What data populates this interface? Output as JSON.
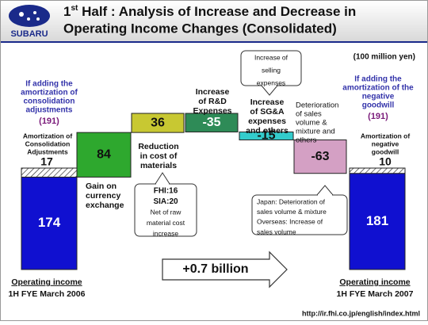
{
  "logo": "SUBARU",
  "title": {
    "ordinal": "1",
    "suffix": "st",
    "line1": " Half : Analysis of Increase and Decrease in",
    "line2": "Operating Income Changes (Consolidated)"
  },
  "url": "http://ir.fhi.co.jp/english/index.html",
  "chart_data": {
    "type": "waterfall",
    "unit": "(100 million yen)",
    "ylim": [
      0,
      300
    ],
    "arrow_label": "+0.7 billion",
    "bars": [
      {
        "kind": "total",
        "value": 174,
        "color": "#1010d0",
        "label_color": "#ffffff",
        "label": [
          "Operating income",
          "1H FYE March 2006"
        ],
        "extra": {
          "value": 17,
          "label": [
            "Amortization of",
            "Consolidation",
            "Adjustments"
          ]
        },
        "note": [
          "If adding the",
          "amortization of",
          "consolidation",
          "adjustments"
        ],
        "note_total": "(191)"
      },
      {
        "kind": "delta",
        "value": 84,
        "color": "#2ea82e",
        "label_color": "#111111",
        "label": [
          "Gain on",
          "currency",
          "exchange"
        ]
      },
      {
        "kind": "delta",
        "value": 36,
        "color": "#c8c832",
        "label_color": "#111111",
        "label": [
          "Reduction",
          "in cost of",
          "materials"
        ],
        "callout": [
          "FHI:16",
          "SIA:20",
          "Net of raw",
          "material cost",
          "increase"
        ]
      },
      {
        "kind": "delta",
        "value": -35,
        "color": "#2e8b57",
        "label_color": "#ffffff",
        "label": [
          "Increase",
          "of R&D",
          "Expenses"
        ]
      },
      {
        "kind": "delta",
        "value": -15,
        "color": "#33cccc",
        "label_color": "#111111",
        "label": [
          "Increase",
          "of SG&A",
          "expenses",
          "and others"
        ],
        "callout": [
          "Increase of",
          "selling",
          "expenses"
        ]
      },
      {
        "kind": "delta",
        "value": -63,
        "color": "#d4a0c4",
        "label_color": "#111111",
        "label": [
          "Deterioration",
          "of sales",
          "volume &",
          "mixture and",
          "others"
        ],
        "callout": [
          "Japan: Deterioration of",
          "sales volume & mixture",
          "Overseas: Increase of",
          "sales volume"
        ]
      },
      {
        "kind": "total",
        "value": 181,
        "color": "#1010d0",
        "label_color": "#ffffff",
        "label": [
          "Operating income",
          "1H FYE March 2007"
        ],
        "extra": {
          "value": 10,
          "label": [
            "Amortization of",
            "negative",
            "goodwill"
          ]
        },
        "note": [
          "If adding the",
          "amortization of the",
          "negative",
          "goodwill"
        ],
        "note_total": "(191)"
      }
    ]
  }
}
